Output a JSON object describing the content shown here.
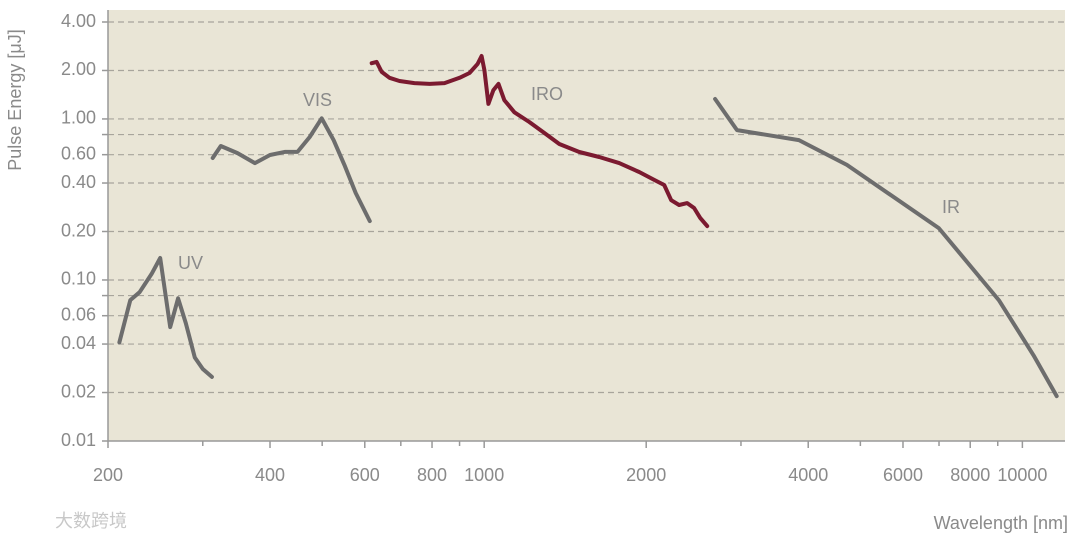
{
  "chart_data": {
    "type": "line",
    "log_x": true,
    "log_y": true,
    "grid": true,
    "y_label": "Pulse Energy [μJ]",
    "x_label": "Wavelength [nm]",
    "watermark": "大数跨境",
    "xlim": [
      200,
      12000
    ],
    "ylim": [
      0.01,
      4
    ],
    "xticks": [
      200,
      400,
      600,
      800,
      1000,
      2000,
      4000,
      6000,
      8000,
      10000
    ],
    "minor_xticks": [
      300,
      500,
      700,
      900,
      3000,
      5000,
      7000,
      9000
    ],
    "yticks": [
      {
        "value": 4,
        "label": "4.00"
      },
      {
        "value": 2,
        "label": "2.00"
      },
      {
        "value": 1,
        "label": "1.00"
      },
      {
        "value": 0.6,
        "label": "0.60"
      },
      {
        "value": 0.4,
        "label": "0.40"
      },
      {
        "value": 0.2,
        "label": "0.20"
      },
      {
        "value": 0.1,
        "label": "0.10"
      },
      0.06,
      0.04,
      0.02,
      0.01
    ],
    "minor_yticks": [
      0.8,
      0.08
    ],
    "series": [
      {
        "name": "UV",
        "color": "#6d6d6d",
        "x": [
          210,
          220,
          229,
          241,
          250,
          261,
          270,
          279,
          290,
          300,
          312
        ],
        "values": [
          0.041,
          0.075,
          0.084,
          0.109,
          0.137,
          0.051,
          0.077,
          0.054,
          0.033,
          0.028,
          0.025
        ]
      },
      {
        "name": "VIS",
        "color": "#6d6d6d",
        "x": [
          313,
          324,
          348,
          375,
          400,
          426,
          450,
          474,
          499,
          525,
          550,
          577,
          613
        ],
        "values": [
          0.572,
          0.679,
          0.614,
          0.532,
          0.597,
          0.624,
          0.624,
          0.772,
          1.01,
          0.739,
          0.518,
          0.347,
          0.232
        ]
      },
      {
        "name": "IRO",
        "color": "#7b1a30",
        "x": [
          618,
          631,
          645,
          667,
          696,
          742,
          792,
          844,
          900,
          939,
          972,
          989,
          1001,
          1018,
          1040,
          1063,
          1090,
          1138,
          1213,
          1294,
          1379,
          1502,
          1636,
          1782,
          1941,
          2070,
          2160,
          2226,
          2302,
          2383,
          2455,
          2520,
          2596
        ],
        "values": [
          2.22,
          2.26,
          1.96,
          1.8,
          1.72,
          1.67,
          1.65,
          1.67,
          1.8,
          1.93,
          2.19,
          2.46,
          2.01,
          1.24,
          1.51,
          1.65,
          1.31,
          1.1,
          0.957,
          0.818,
          0.699,
          0.623,
          0.58,
          0.532,
          0.468,
          0.418,
          0.389,
          0.313,
          0.292,
          0.3,
          0.28,
          0.243,
          0.216
        ]
      },
      {
        "name": "IR",
        "color": "#6d6d6d",
        "x": [
          2686,
          2950,
          3844,
          4720,
          6994,
          9040,
          10490,
          11580
        ],
        "values": [
          1.33,
          0.853,
          0.739,
          0.518,
          0.21,
          0.075,
          0.034,
          0.019
        ]
      }
    ]
  }
}
